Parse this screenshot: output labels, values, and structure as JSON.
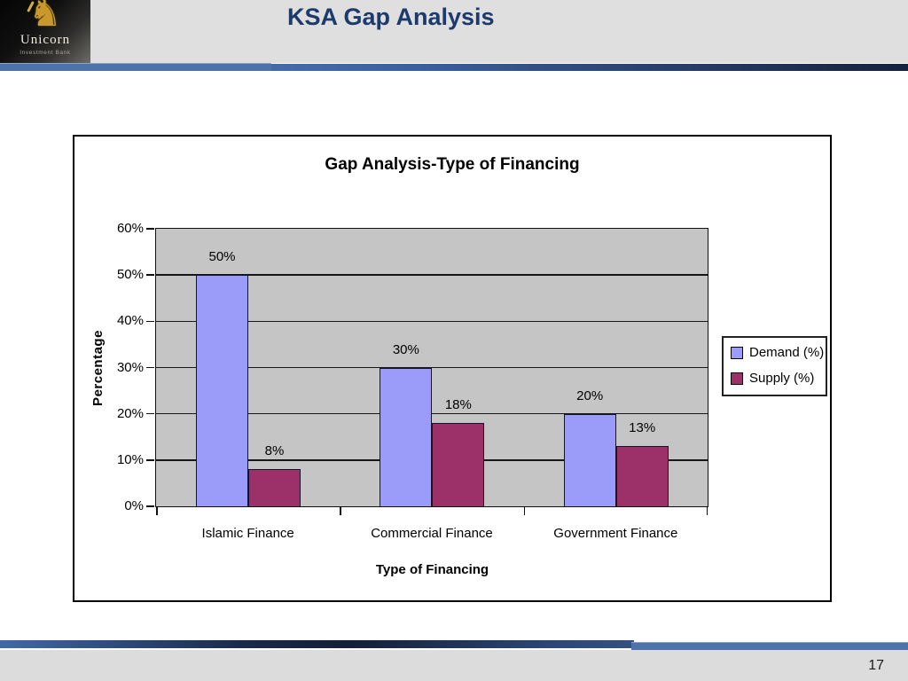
{
  "header": {
    "title": "KSA Gap Analysis",
    "title_color": "#1C3A6B",
    "logo": {
      "icon": "unicorn-icon",
      "name": "Unicorn",
      "subtitle": "Investment Bank",
      "gold": "#C9992E"
    }
  },
  "footer": {
    "page_number": "17"
  },
  "chart_data": {
    "type": "bar",
    "title": "Gap Analysis-Type of Financing",
    "categories": [
      "Islamic Finance",
      "Commercial Finance",
      "Government Finance"
    ],
    "series": [
      {
        "name": "Demand (%)",
        "color": "#9B9BFA",
        "values": [
          50,
          30,
          20
        ],
        "labels": [
          "50%",
          "30%",
          "20%"
        ]
      },
      {
        "name": "Supply (%)",
        "color": "#9B3168",
        "values": [
          8,
          18,
          13
        ],
        "labels": [
          "8%",
          "18%",
          "13%"
        ]
      }
    ],
    "xlabel": "Type of Financing",
    "ylabel": "Percentage",
    "ylim": [
      0,
      60
    ],
    "ytick_step": 10,
    "ytick_labels": [
      "0%",
      "10%",
      "20%",
      "30%",
      "40%",
      "50%",
      "60%"
    ],
    "grid": true,
    "legend_position": "right",
    "plot_bg_color": "#C5C5C5",
    "gridline_color": "#161616"
  }
}
